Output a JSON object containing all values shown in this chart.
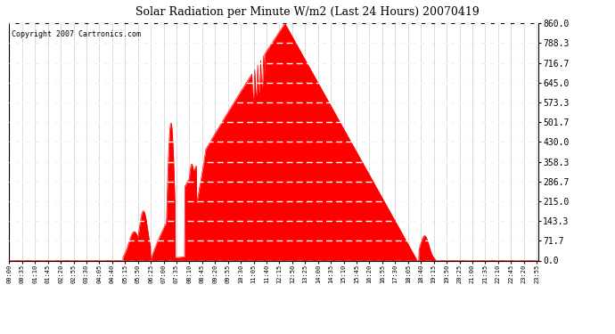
{
  "title": "Solar Radiation per Minute W/m2 (Last 24 Hours) 20070419",
  "copyright": "Copyright 2007 Cartronics.com",
  "fill_color": "#FF0000",
  "line_color": "#FF0000",
  "background_color": "#FFFFFF",
  "plot_bg_color": "#FFFFFF",
  "grid_color": "#C0C0C0",
  "dashed_grid_color": "#FFFFFF",
  "ylim": [
    0.0,
    860.0
  ],
  "yticks": [
    0.0,
    71.7,
    143.3,
    215.0,
    286.7,
    358.3,
    430.0,
    501.7,
    573.3,
    645.0,
    716.7,
    788.3,
    860.0
  ],
  "num_points": 1440,
  "peak_value": 860.0,
  "x_tick_minutes": 35,
  "title_fontsize": 9,
  "copyright_fontsize": 6,
  "ytick_fontsize": 7,
  "xtick_fontsize": 5
}
